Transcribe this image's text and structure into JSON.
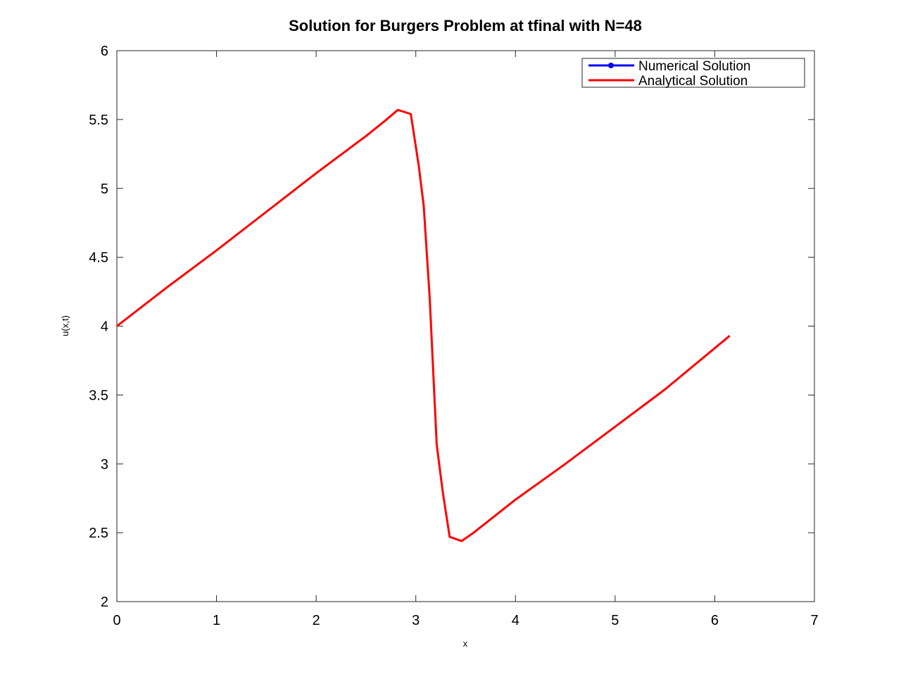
{
  "chart_data": {
    "type": "line",
    "title": "Solution for Burgers Problem at tfinal with N=48",
    "xlabel": "x",
    "ylabel": "u(x,t)",
    "xlim": [
      0,
      7
    ],
    "ylim": [
      2,
      6
    ],
    "xticks": [
      0,
      1,
      2,
      3,
      4,
      5,
      6,
      7
    ],
    "yticks": [
      2,
      2.5,
      3,
      3.5,
      4,
      4.5,
      5,
      5.5,
      6
    ],
    "legend_position": "top-right",
    "grid": false,
    "series": [
      {
        "name": "Numerical Solution",
        "color": "#0000ff",
        "marker": "circle",
        "x": [],
        "y": []
      },
      {
        "name": "Analytical Solution",
        "color": "#ff0000",
        "marker": "none",
        "x": [
          0,
          0.5,
          1.0,
          1.5,
          2.0,
          2.5,
          2.69,
          2.82,
          2.95,
          3.03,
          3.08,
          3.14,
          3.21,
          3.27,
          3.34,
          3.46,
          3.58,
          4.0,
          4.5,
          5.0,
          5.5,
          6.0,
          6.15
        ],
        "y": [
          4.0,
          4.28,
          4.55,
          4.83,
          5.11,
          5.38,
          5.49,
          5.57,
          5.54,
          5.16,
          4.87,
          4.2,
          3.14,
          2.8,
          2.47,
          2.44,
          2.5,
          2.74,
          3.0,
          3.27,
          3.54,
          3.84,
          3.93
        ]
      }
    ]
  }
}
